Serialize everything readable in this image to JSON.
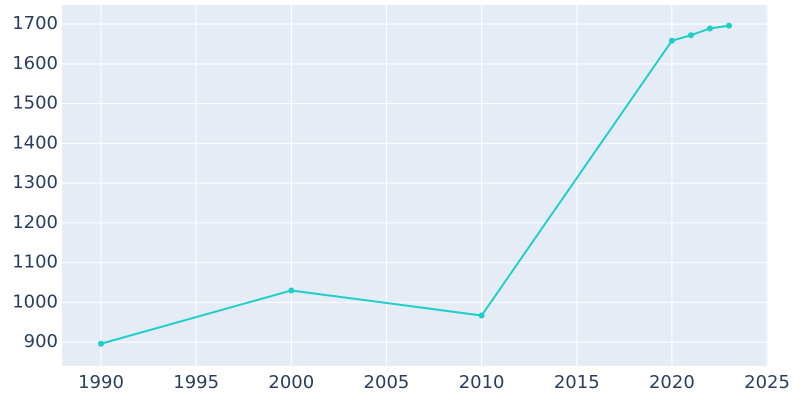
{
  "chart_data": {
    "type": "line",
    "x": [
      1990,
      2000,
      2010,
      2020,
      2021,
      2022,
      2023
    ],
    "values": [
      896,
      1030,
      967,
      1658,
      1672,
      1689,
      1696
    ],
    "color": "#1ccfc9",
    "xlim": [
      1987.95,
      2025.05
    ],
    "xticks": [
      1990,
      1995,
      2000,
      2005,
      2010,
      2015,
      2020,
      2025
    ],
    "ylim": [
      840,
      1748
    ],
    "yticks": [
      900,
      1000,
      1100,
      1200,
      1300,
      1400,
      1500,
      1600,
      1700
    ],
    "grid": true
  }
}
